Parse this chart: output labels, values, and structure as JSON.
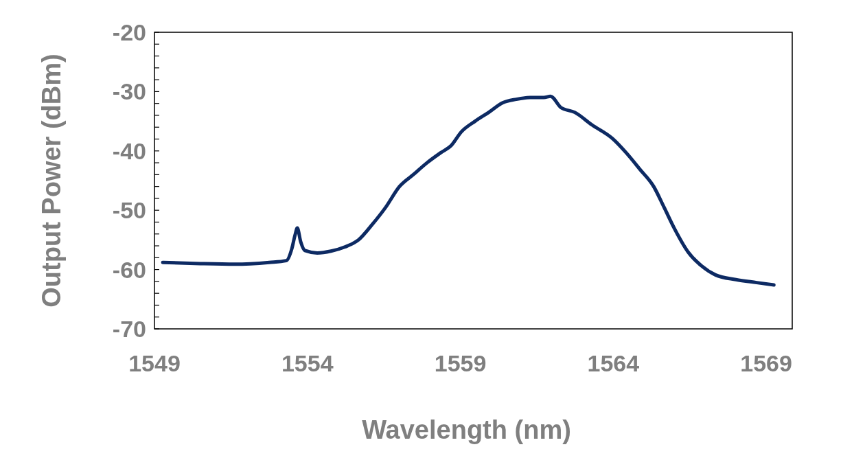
{
  "chart_data": {
    "type": "line",
    "xlabel": "Wavelength (nm)",
    "ylabel": "Output Power (dBm)",
    "xlim": [
      1549,
      1569.85
    ],
    "xticks": [
      1549,
      1554,
      1559,
      1564,
      1569
    ],
    "ylim": [
      -70,
      -20
    ],
    "yticks": [
      -70,
      {
        "value": -68,
        "label": null
      },
      {
        "value": -66,
        "label": null
      },
      {
        "value": -64,
        "label": null
      },
      {
        "value": -62,
        "label": null
      },
      -60,
      {
        "value": -58,
        "label": null
      },
      {
        "value": -56,
        "label": null
      },
      {
        "value": -54,
        "label": null
      },
      {
        "value": -52,
        "label": null
      },
      -50,
      {
        "value": -48,
        "label": null
      },
      {
        "value": -46,
        "label": null
      },
      {
        "value": -44,
        "label": null
      },
      {
        "value": -42,
        "label": null
      },
      -40,
      {
        "value": -38,
        "label": null
      },
      {
        "value": -36,
        "label": null
      },
      {
        "value": -34,
        "label": null
      },
      {
        "value": -32,
        "label": null
      },
      -30,
      {
        "value": -28,
        "label": null
      },
      {
        "value": -26,
        "label": null
      },
      {
        "value": -24,
        "label": null
      },
      {
        "value": -22,
        "label": null
      },
      -20
    ],
    "grid": false,
    "marker": "none",
    "line_style": "solid",
    "series": [
      {
        "color": "#0d2a63",
        "x": [
          1549.27,
          1550.5,
          1551.63,
          1552.75,
          1553.31,
          1553.49,
          1553.6,
          1553.67,
          1553.78,
          1553.92,
          1554.32,
          1554.77,
          1555.22,
          1555.67,
          1556.12,
          1556.56,
          1557.01,
          1557.46,
          1557.91,
          1558.36,
          1558.7,
          1559.03,
          1559.48,
          1559.93,
          1560.38,
          1560.83,
          1561.28,
          1561.73,
          1561.95,
          1562.29,
          1562.74,
          1563.3,
          1563.97,
          1564.42,
          1564.87,
          1565.32,
          1565.66,
          1565.99,
          1566.44,
          1566.89,
          1567.34,
          1568.01,
          1568.69,
          1569.25
        ],
        "values": [
          -58.8,
          -59,
          -59.1,
          -58.8,
          -58.5,
          -56.5,
          -54.1,
          -53,
          -55.3,
          -56.8,
          -57.2,
          -56.9,
          -56.2,
          -55,
          -52.4,
          -49.5,
          -46,
          -44,
          -42,
          -40.3,
          -39.1,
          -36.8,
          -35,
          -33.5,
          -31.9,
          -31.3,
          -31,
          -31,
          -30.8,
          -32.7,
          -33.5,
          -35.6,
          -37.9,
          -40.3,
          -43.1,
          -46,
          -49.5,
          -53,
          -57,
          -59.4,
          -60.9,
          -61.7,
          -62.2,
          -62.6
        ]
      }
    ]
  }
}
